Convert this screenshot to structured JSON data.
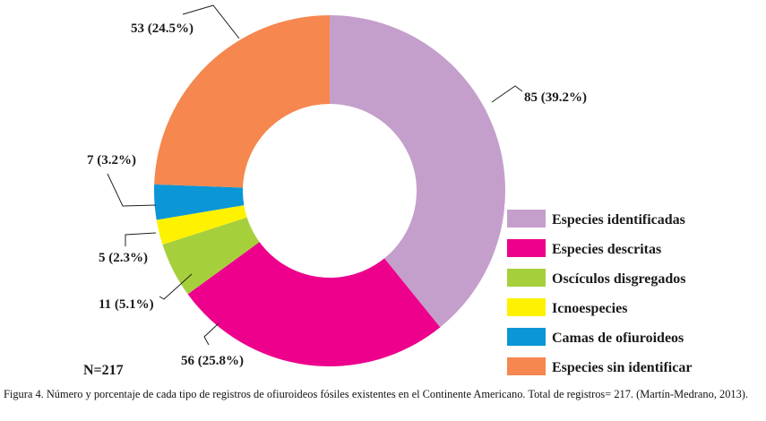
{
  "chart_data": {
    "type": "pie",
    "style": "donut",
    "slices": [
      {
        "name": "Especies identificadas",
        "value": 85,
        "label": "85 (39.2%)",
        "color": "#c59fcc"
      },
      {
        "name": "Especies descritas",
        "value": 56,
        "label": "56 (25.8%)",
        "color": "#ec008c"
      },
      {
        "name": "Oscículos disgregados",
        "value": 11,
        "label": "11 (5.1%)",
        "color": "#a6cf3c"
      },
      {
        "name": "Icnoespecies",
        "value": 5,
        "label": "5 (2.3%)",
        "color": "#fef200"
      },
      {
        "name": "Camas de ofiuroideos",
        "value": 7,
        "label": "7 (3.2%)",
        "color": "#0b96d8"
      },
      {
        "name": "Especies sin identificar",
        "value": 53,
        "label": "53 (24.5%)",
        "color": "#f5874f"
      }
    ],
    "total_label": "N=217",
    "legend_position": "right"
  },
  "caption": "Figura 4. Número y porcentaje de cada tipo de registros de ofiuroideos fósiles existentes en el Continente Americano. Total de registros= 217. (Martín-Medrano, 2013)."
}
